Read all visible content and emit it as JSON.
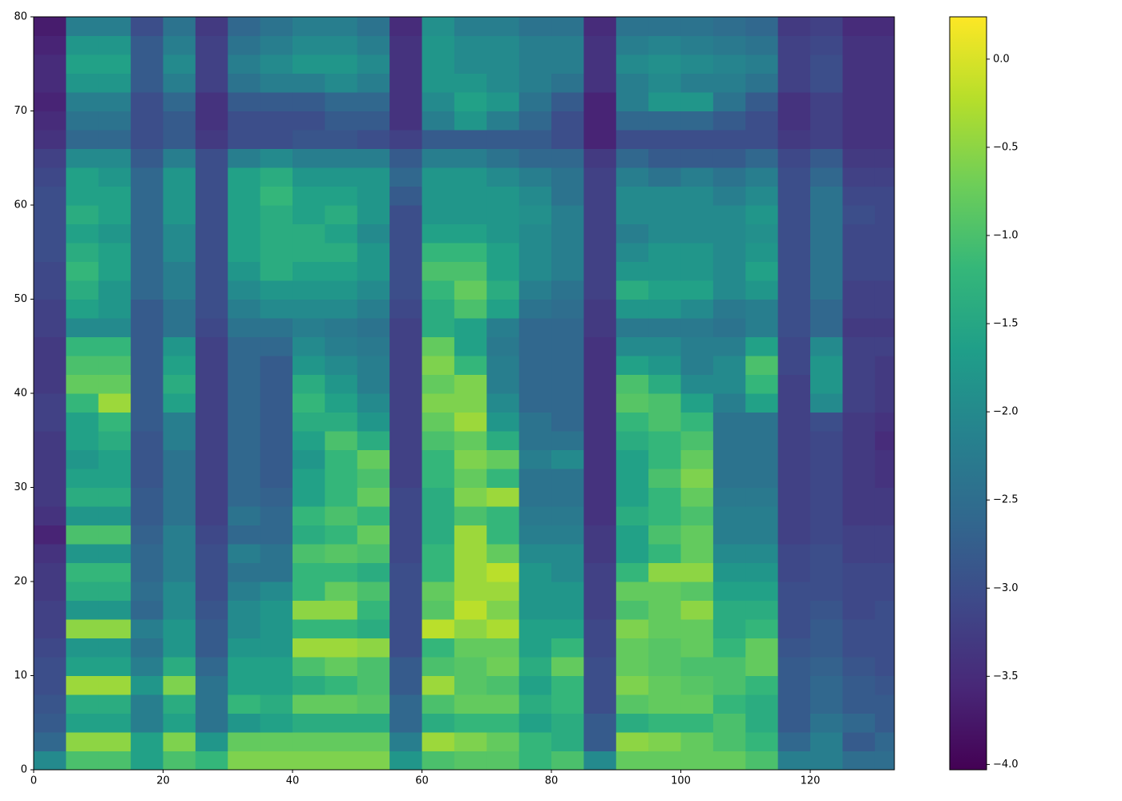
{
  "chart_data": {
    "type": "heatmap",
    "xlim": [
      0,
      133
    ],
    "ylim": [
      0,
      80
    ],
    "xticks": [
      0,
      20,
      40,
      60,
      80,
      100,
      120
    ],
    "yticks": [
      0,
      10,
      20,
      30,
      40,
      50,
      60,
      70,
      80
    ],
    "x_edges": [
      0,
      5,
      10,
      15,
      20,
      25,
      30,
      35,
      40,
      45,
      50,
      55,
      60,
      65,
      70,
      75,
      80,
      85,
      90,
      95,
      100,
      105,
      110,
      115,
      120,
      125,
      130,
      133
    ],
    "y_edges": [
      0,
      2,
      4,
      6,
      8,
      10,
      12,
      14,
      16,
      18,
      20,
      22,
      24,
      26,
      28,
      30,
      32,
      34,
      36,
      38,
      40,
      42,
      44,
      46,
      48,
      50,
      52,
      54,
      56,
      58,
      60,
      62,
      64,
      66,
      68,
      70,
      72,
      74,
      76,
      78,
      80
    ],
    "clim": [
      -4.03,
      0.24
    ],
    "cticks": [
      {
        "value": 0,
        "label": "0.0"
      },
      {
        "value": -0.5,
        "label": "−0.5"
      },
      {
        "value": -1,
        "label": "−1.0"
      },
      {
        "value": -1.5,
        "label": "−1.5"
      },
      {
        "value": -2,
        "label": "−2.0"
      },
      {
        "value": -2.5,
        "label": "−2.5"
      },
      {
        "value": -3,
        "label": "−3.0"
      },
      {
        "value": -3.5,
        "label": "−3.5"
      },
      {
        "value": -4,
        "label": "−4.0"
      }
    ],
    "colormap": [
      "#440154",
      "#482878",
      "#3e4989",
      "#31688e",
      "#26828e",
      "#1f9e89",
      "#35b779",
      "#6ece58",
      "#b5de2b",
      "#fde725"
    ],
    "z": [
      [
        -2.0,
        -1.0,
        -1.0,
        -1.6,
        -1.0,
        -1.2,
        -0.6,
        -0.6,
        -0.6,
        -0.6,
        -0.6,
        -1.8,
        -1.0,
        -0.9,
        -0.9,
        -1.2,
        -1.0,
        -2.0,
        -0.8,
        -0.8,
        -0.8,
        -0.8,
        -1.0,
        -2.2,
        -2.2,
        -2.5,
        -2.5
      ],
      [
        -2.6,
        -0.5,
        -0.5,
        -1.6,
        -0.6,
        -1.8,
        -0.8,
        -0.8,
        -0.8,
        -0.8,
        -0.8,
        -2.2,
        -0.4,
        -0.6,
        -0.8,
        -1.2,
        -1.4,
        -2.8,
        -0.5,
        -0.6,
        -0.8,
        -1.0,
        -1.2,
        -2.6,
        -2.2,
        -2.8,
        -2.6
      ],
      [
        -2.8,
        -1.6,
        -1.6,
        -2.2,
        -1.6,
        -2.4,
        -1.8,
        -1.6,
        -1.4,
        -1.4,
        -1.4,
        -2.6,
        -1.4,
        -1.2,
        -1.2,
        -1.6,
        -1.4,
        -2.8,
        -1.4,
        -1.2,
        -1.2,
        -1.0,
        -1.4,
        -2.8,
        -2.4,
        -2.6,
        -2.8
      ],
      [
        -2.9,
        -1.4,
        -1.4,
        -2.2,
        -1.4,
        -2.4,
        -1.2,
        -1.4,
        -0.8,
        -0.8,
        -0.9,
        -2.6,
        -1.0,
        -0.8,
        -0.8,
        -1.4,
        -1.2,
        -3.0,
        -0.9,
        -0.8,
        -0.8,
        -1.2,
        -1.4,
        -2.8,
        -2.6,
        -2.8,
        -2.8
      ],
      [
        -3.0,
        -0.4,
        -0.4,
        -1.8,
        -0.6,
        -2.4,
        -1.6,
        -1.6,
        -1.4,
        -1.2,
        -1.0,
        -2.8,
        -0.4,
        -0.9,
        -1.0,
        -1.6,
        -1.2,
        -3.0,
        -0.6,
        -0.8,
        -0.9,
        -1.0,
        -1.2,
        -2.8,
        -2.6,
        -2.8,
        -2.9
      ],
      [
        -3.0,
        -1.6,
        -1.6,
        -2.2,
        -1.4,
        -2.6,
        -1.6,
        -1.6,
        -1.0,
        -0.8,
        -1.0,
        -2.8,
        -1.0,
        -0.9,
        -0.7,
        -1.4,
        -0.8,
        -3.0,
        -0.8,
        -0.9,
        -1.0,
        -1.0,
        -0.8,
        -2.8,
        -2.7,
        -2.9,
        -3.0
      ],
      [
        -3.1,
        -1.8,
        -1.8,
        -2.4,
        -1.8,
        -2.8,
        -1.8,
        -1.8,
        -0.4,
        -0.4,
        -0.5,
        -3.0,
        -1.2,
        -0.8,
        -0.8,
        -1.6,
        -1.2,
        -3.1,
        -0.8,
        -0.9,
        -0.8,
        -1.2,
        -0.8,
        -2.9,
        -2.8,
        -3.0,
        -3.0
      ],
      [
        -3.2,
        -0.5,
        -0.5,
        -2.2,
        -1.8,
        -2.8,
        -2.0,
        -1.8,
        -1.2,
        -1.2,
        -1.4,
        -3.0,
        -0.2,
        -0.5,
        -0.3,
        -1.6,
        -1.6,
        -3.1,
        -0.6,
        -0.8,
        -0.8,
        -1.4,
        -1.2,
        -3.0,
        -2.8,
        -3.0,
        -3.0
      ],
      [
        -3.2,
        -1.8,
        -1.8,
        -2.6,
        -2.0,
        -2.9,
        -2.0,
        -1.8,
        -0.5,
        -0.5,
        -1.2,
        -3.0,
        -0.9,
        -0.2,
        -0.6,
        -1.8,
        -1.8,
        -3.2,
        -1.0,
        -0.8,
        -0.5,
        -1.4,
        -1.4,
        -3.0,
        -2.9,
        -3.1,
        -3.0
      ],
      [
        -3.3,
        -1.4,
        -1.4,
        -2.5,
        -2.0,
        -3.0,
        -2.2,
        -2.0,
        -1.2,
        -0.8,
        -1.0,
        -3.0,
        -0.8,
        -0.4,
        -0.4,
        -1.8,
        -1.8,
        -3.2,
        -0.8,
        -0.8,
        -0.9,
        -1.6,
        -1.6,
        -3.0,
        -3.0,
        -3.1,
        -3.1
      ],
      [
        -3.3,
        -1.2,
        -1.2,
        -2.6,
        -2.2,
        -3.0,
        -2.4,
        -2.4,
        -1.2,
        -1.2,
        -1.4,
        -3.0,
        -1.2,
        -0.4,
        -0.2,
        -1.8,
        -2.0,
        -3.2,
        -1.2,
        -0.5,
        -0.5,
        -1.8,
        -1.8,
        -3.1,
        -3.0,
        -3.1,
        -3.1
      ],
      [
        -3.4,
        -1.8,
        -1.8,
        -2.6,
        -2.2,
        -3.0,
        -2.2,
        -2.4,
        -1.0,
        -0.9,
        -1.0,
        -3.1,
        -1.2,
        -0.4,
        -0.8,
        -2.0,
        -2.0,
        -3.3,
        -1.6,
        -1.2,
        -0.8,
        -2.0,
        -2.0,
        -3.1,
        -3.0,
        -3.2,
        -3.2
      ],
      [
        -3.6,
        -1.0,
        -1.0,
        -2.7,
        -2.2,
        -3.1,
        -2.6,
        -2.6,
        -1.4,
        -1.2,
        -0.8,
        -3.1,
        -1.4,
        -0.4,
        -1.2,
        -2.2,
        -2.2,
        -3.3,
        -1.6,
        -1.0,
        -0.8,
        -2.2,
        -2.2,
        -3.2,
        -3.1,
        -3.2,
        -3.2
      ],
      [
        -3.4,
        -1.8,
        -1.8,
        -2.8,
        -2.4,
        -3.2,
        -2.4,
        -2.6,
        -1.2,
        -1.0,
        -1.2,
        -3.1,
        -1.4,
        -1.0,
        -1.2,
        -2.3,
        -2.3,
        -3.4,
        -1.4,
        -1.2,
        -1.0,
        -2.2,
        -2.2,
        -3.2,
        -3.1,
        -3.3,
        -3.3
      ],
      [
        -3.3,
        -1.4,
        -1.4,
        -2.8,
        -2.4,
        -3.2,
        -2.6,
        -2.7,
        -1.6,
        -1.2,
        -0.8,
        -3.1,
        -1.4,
        -0.6,
        -0.4,
        -2.4,
        -2.4,
        -3.4,
        -1.6,
        -1.2,
        -0.8,
        -2.3,
        -2.3,
        -3.2,
        -3.1,
        -3.3,
        -3.3
      ],
      [
        -3.3,
        -1.6,
        -1.6,
        -2.9,
        -2.4,
        -3.2,
        -2.6,
        -2.8,
        -1.6,
        -1.2,
        -1.0,
        -3.2,
        -1.2,
        -0.8,
        -1.2,
        -2.4,
        -2.4,
        -3.4,
        -1.6,
        -1.0,
        -0.6,
        -2.4,
        -2.4,
        -3.2,
        -3.1,
        -3.3,
        -3.4
      ],
      [
        -3.3,
        -1.8,
        -1.6,
        -2.9,
        -2.4,
        -3.2,
        -2.6,
        -2.8,
        -1.8,
        -1.2,
        -0.8,
        -3.2,
        -1.2,
        -0.6,
        -0.8,
        -2.2,
        -2.0,
        -3.4,
        -1.6,
        -1.2,
        -0.8,
        -2.4,
        -2.4,
        -3.2,
        -3.1,
        -3.3,
        -3.4
      ],
      [
        -3.3,
        -1.6,
        -1.4,
        -2.9,
        -2.2,
        -3.2,
        -2.6,
        -2.8,
        -1.6,
        -1.0,
        -1.4,
        -3.2,
        -1.0,
        -0.8,
        -1.4,
        -2.4,
        -2.4,
        -3.4,
        -1.4,
        -1.2,
        -1.0,
        -2.4,
        -2.4,
        -3.2,
        -3.1,
        -3.3,
        -3.5
      ],
      [
        -3.2,
        -1.6,
        -1.2,
        -2.8,
        -2.2,
        -3.2,
        -2.6,
        -2.8,
        -1.4,
        -1.4,
        -1.8,
        -3.2,
        -0.8,
        -0.4,
        -1.8,
        -2.4,
        -2.6,
        -3.4,
        -1.2,
        -1.0,
        -1.2,
        -2.4,
        -2.4,
        -3.2,
        -3.0,
        -3.3,
        -3.4
      ],
      [
        -3.2,
        -1.2,
        -0.4,
        -2.8,
        -1.6,
        -3.2,
        -2.6,
        -2.8,
        -1.2,
        -1.6,
        -2.0,
        -3.2,
        -0.6,
        -0.6,
        -2.0,
        -2.6,
        -2.6,
        -3.4,
        -0.9,
        -1.0,
        -1.6,
        -2.2,
        -1.6,
        -3.2,
        -2.0,
        -3.2,
        -3.3
      ],
      [
        -3.3,
        -0.8,
        -0.8,
        -2.8,
        -1.4,
        -3.2,
        -2.6,
        -2.8,
        -1.4,
        -1.8,
        -2.2,
        -3.2,
        -0.8,
        -0.6,
        -2.2,
        -2.6,
        -2.6,
        -3.4,
        -1.0,
        -1.4,
        -2.0,
        -2.0,
        -1.2,
        -3.2,
        -1.8,
        -3.2,
        -3.3
      ],
      [
        -3.3,
        -1.0,
        -1.0,
        -2.8,
        -1.6,
        -3.2,
        -2.6,
        -2.8,
        -1.8,
        -2.0,
        -2.2,
        -3.2,
        -0.6,
        -1.2,
        -2.2,
        -2.6,
        -2.6,
        -3.4,
        -1.6,
        -1.8,
        -2.2,
        -2.0,
        -1.0,
        -3.1,
        -1.8,
        -3.2,
        -3.3
      ],
      [
        -3.3,
        -1.2,
        -1.2,
        -2.8,
        -1.8,
        -3.2,
        -2.6,
        -2.6,
        -2.0,
        -2.2,
        -2.3,
        -3.2,
        -0.8,
        -1.6,
        -2.3,
        -2.6,
        -2.6,
        -3.4,
        -2.0,
        -2.0,
        -2.2,
        -2.2,
        -1.6,
        -3.1,
        -2.0,
        -3.2,
        -3.2
      ],
      [
        -3.2,
        -2.0,
        -2.0,
        -2.8,
        -2.4,
        -3.1,
        -2.4,
        -2.4,
        -2.2,
        -2.3,
        -2.4,
        -3.2,
        -1.4,
        -1.6,
        -2.2,
        -2.6,
        -2.6,
        -3.3,
        -2.3,
        -2.3,
        -2.3,
        -2.4,
        -2.2,
        -3.0,
        -2.6,
        -3.3,
        -3.3
      ],
      [
        -3.2,
        -1.6,
        -1.8,
        -2.8,
        -2.4,
        -3.0,
        -2.2,
        -2.0,
        -2.0,
        -2.0,
        -2.2,
        -3.1,
        -1.4,
        -1.0,
        -1.6,
        -2.4,
        -2.5,
        -3.3,
        -1.8,
        -1.8,
        -2.0,
        -2.3,
        -2.2,
        -3.0,
        -2.6,
        -3.2,
        -3.2
      ],
      [
        -3.1,
        -1.4,
        -1.8,
        -2.6,
        -2.2,
        -3.0,
        -2.0,
        -1.8,
        -1.8,
        -1.8,
        -2.0,
        -3.0,
        -1.2,
        -0.8,
        -1.4,
        -2.2,
        -2.4,
        -3.2,
        -1.4,
        -1.6,
        -1.6,
        -2.0,
        -1.8,
        -3.0,
        -2.4,
        -3.2,
        -3.2
      ],
      [
        -3.1,
        -1.2,
        -1.6,
        -2.6,
        -2.2,
        -3.0,
        -1.8,
        -1.4,
        -1.6,
        -1.6,
        -1.8,
        -3.0,
        -1.0,
        -1.0,
        -1.6,
        -2.0,
        -2.2,
        -3.2,
        -1.8,
        -1.8,
        -1.8,
        -2.0,
        -1.6,
        -3.0,
        -2.4,
        -3.1,
        -3.1
      ],
      [
        -3.0,
        -1.4,
        -1.6,
        -2.6,
        -2.0,
        -3.0,
        -1.6,
        -1.4,
        -1.4,
        -1.4,
        -1.8,
        -3.0,
        -1.2,
        -1.2,
        -1.6,
        -2.0,
        -2.2,
        -3.2,
        -2.0,
        -1.8,
        -1.8,
        -2.0,
        -1.8,
        -3.0,
        -2.4,
        -3.1,
        -3.1
      ],
      [
        -3.0,
        -1.6,
        -1.8,
        -2.6,
        -2.0,
        -3.0,
        -1.6,
        -1.4,
        -1.4,
        -1.6,
        -2.0,
        -3.0,
        -1.6,
        -1.6,
        -1.8,
        -2.0,
        -2.2,
        -3.2,
        -2.2,
        -2.0,
        -2.0,
        -2.0,
        -1.9,
        -3.0,
        -2.4,
        -3.1,
        -3.1
      ],
      [
        -3.0,
        -1.4,
        -1.6,
        -2.6,
        -1.8,
        -3.0,
        -1.6,
        -1.4,
        -1.6,
        -1.4,
        -1.8,
        -3.0,
        -1.8,
        -1.8,
        -1.8,
        -1.9,
        -2.2,
        -3.2,
        -2.0,
        -2.0,
        -2.0,
        -2.0,
        -1.8,
        -3.0,
        -2.4,
        -3.0,
        -3.1
      ],
      [
        -3.0,
        -1.6,
        -1.6,
        -2.6,
        -1.8,
        -3.0,
        -1.6,
        -1.2,
        -1.6,
        -1.6,
        -1.8,
        -2.8,
        -1.8,
        -1.8,
        -1.8,
        -2.0,
        -2.4,
        -3.2,
        -2.0,
        -2.0,
        -2.0,
        -2.2,
        -2.0,
        -3.0,
        -2.4,
        -3.1,
        -3.1
      ],
      [
        -3.1,
        -1.6,
        -1.8,
        -2.6,
        -1.8,
        -3.0,
        -1.6,
        -1.4,
        -1.8,
        -1.8,
        -1.8,
        -2.6,
        -1.8,
        -1.8,
        -2.0,
        -2.2,
        -2.4,
        -3.2,
        -2.2,
        -2.4,
        -2.2,
        -2.4,
        -2.2,
        -3.0,
        -2.6,
        -3.2,
        -3.2
      ],
      [
        -3.2,
        -2.0,
        -2.0,
        -2.8,
        -2.2,
        -3.0,
        -2.2,
        -2.0,
        -2.2,
        -2.2,
        -2.2,
        -2.8,
        -2.2,
        -2.2,
        -2.4,
        -2.6,
        -2.6,
        -3.3,
        -2.6,
        -2.8,
        -2.8,
        -2.8,
        -2.6,
        -3.1,
        -2.8,
        -3.3,
        -3.3
      ],
      [
        -3.4,
        -2.6,
        -2.6,
        -3.0,
        -2.8,
        -3.3,
        -3.0,
        -3.0,
        -2.9,
        -2.9,
        -3.0,
        -3.2,
        -2.8,
        -2.8,
        -2.8,
        -2.8,
        -3.0,
        -3.6,
        -3.0,
        -3.0,
        -3.0,
        -3.0,
        -3.0,
        -3.3,
        -3.2,
        -3.4,
        -3.4
      ],
      [
        -3.5,
        -2.4,
        -2.4,
        -3.0,
        -2.8,
        -3.4,
        -3.0,
        -3.0,
        -3.0,
        -2.8,
        -2.8,
        -3.4,
        -2.2,
        -1.8,
        -2.2,
        -2.6,
        -3.0,
        -3.6,
        -2.6,
        -2.6,
        -2.6,
        -2.8,
        -3.0,
        -3.4,
        -3.2,
        -3.4,
        -3.4
      ],
      [
        -3.6,
        -2.2,
        -2.2,
        -3.0,
        -2.6,
        -3.4,
        -2.8,
        -2.8,
        -2.8,
        -2.6,
        -2.6,
        -3.4,
        -2.0,
        -1.6,
        -1.8,
        -2.4,
        -2.8,
        -3.6,
        -2.2,
        -1.8,
        -1.8,
        -2.4,
        -2.8,
        -3.4,
        -3.2,
        -3.4,
        -3.4
      ],
      [
        -3.5,
        -1.8,
        -1.8,
        -2.8,
        -2.2,
        -3.2,
        -2.4,
        -2.2,
        -2.2,
        -2.0,
        -2.2,
        -3.4,
        -1.8,
        -1.8,
        -2.0,
        -2.2,
        -2.4,
        -3.4,
        -2.2,
        -2.0,
        -2.2,
        -2.2,
        -2.4,
        -3.2,
        -3.0,
        -3.4,
        -3.4
      ],
      [
        -3.5,
        -1.6,
        -1.6,
        -2.8,
        -2.0,
        -3.2,
        -2.2,
        -2.0,
        -1.8,
        -1.8,
        -2.0,
        -3.4,
        -1.8,
        -2.0,
        -2.0,
        -2.2,
        -2.2,
        -3.4,
        -2.0,
        -1.9,
        -2.0,
        -2.1,
        -2.2,
        -3.2,
        -3.0,
        -3.4,
        -3.4
      ],
      [
        -3.6,
        -1.8,
        -1.8,
        -2.8,
        -2.2,
        -3.2,
        -2.4,
        -2.2,
        -2.0,
        -2.0,
        -2.2,
        -3.4,
        -1.8,
        -2.0,
        -2.0,
        -2.2,
        -2.2,
        -3.4,
        -2.2,
        -2.1,
        -2.2,
        -2.3,
        -2.4,
        -3.2,
        -3.1,
        -3.4,
        -3.4
      ],
      [
        -3.7,
        -2.2,
        -2.2,
        -3.0,
        -2.4,
        -3.3,
        -2.6,
        -2.4,
        -2.2,
        -2.2,
        -2.4,
        -3.5,
        -1.9,
        -2.2,
        -2.2,
        -2.4,
        -2.4,
        -3.5,
        -2.4,
        -2.4,
        -2.4,
        -2.5,
        -2.6,
        -3.3,
        -3.2,
        -3.5,
        -3.5
      ]
    ]
  }
}
